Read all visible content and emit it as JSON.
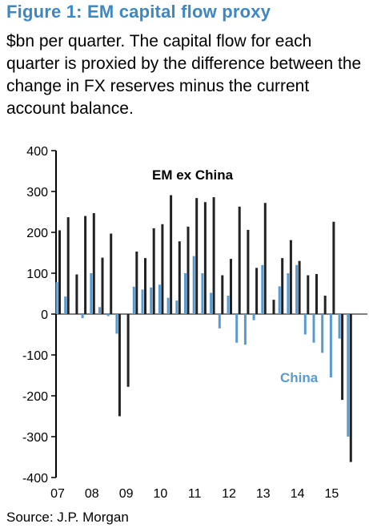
{
  "chart_data": {
    "type": "bar",
    "title": "Figure 1: EM capital flow proxy",
    "subtitle": "$bn per quarter. The capital flow for each quarter is proxied by the difference between the change in FX reserves minus the current account balance.",
    "source": "Source: J.P. Morgan",
    "ylim": [
      -400,
      400
    ],
    "yticks": [
      400,
      300,
      200,
      100,
      0,
      -100,
      -200,
      -300,
      -400
    ],
    "year_labels": [
      "07",
      "08",
      "09",
      "10",
      "11",
      "12",
      "13",
      "14",
      "15"
    ],
    "categories": [
      "07Q1",
      "07Q2",
      "07Q3",
      "07Q4",
      "08Q1",
      "08Q2",
      "08Q3",
      "08Q4",
      "09Q1",
      "09Q2",
      "09Q3",
      "09Q4",
      "10Q1",
      "10Q2",
      "10Q3",
      "10Q4",
      "11Q1",
      "11Q2",
      "11Q3",
      "11Q4",
      "12Q1",
      "12Q2",
      "12Q3",
      "12Q4",
      "13Q1",
      "13Q2",
      "13Q3",
      "13Q4",
      "14Q1",
      "14Q2",
      "14Q3",
      "14Q4",
      "15Q1",
      "15Q2",
      "15Q3",
      "15Q4"
    ],
    "series": [
      {
        "name": "EM ex China",
        "color": "#222222",
        "values": [
          205,
          237,
          97,
          240,
          247,
          138,
          197,
          -250,
          -178,
          153,
          137,
          210,
          220,
          291,
          178,
          214,
          284,
          274,
          286,
          95,
          135,
          263,
          206,
          113,
          272,
          35,
          137,
          181,
          130,
          95,
          98,
          45,
          226,
          -210,
          -362,
          null
        ]
      },
      {
        "name": "China",
        "color": "#5a9bcf",
        "values": [
          78,
          43,
          0,
          -10,
          100,
          17,
          -5,
          -48,
          0,
          67,
          60,
          65,
          72,
          40,
          33,
          100,
          142,
          100,
          52,
          -35,
          45,
          -70,
          -75,
          -15,
          120,
          0,
          68,
          100,
          120,
          -50,
          -70,
          -95,
          -155,
          -60,
          -300,
          null
        ]
      }
    ],
    "annotations": [
      {
        "text": "EM ex China"
      },
      {
        "text": "China"
      }
    ],
    "grid": false
  }
}
